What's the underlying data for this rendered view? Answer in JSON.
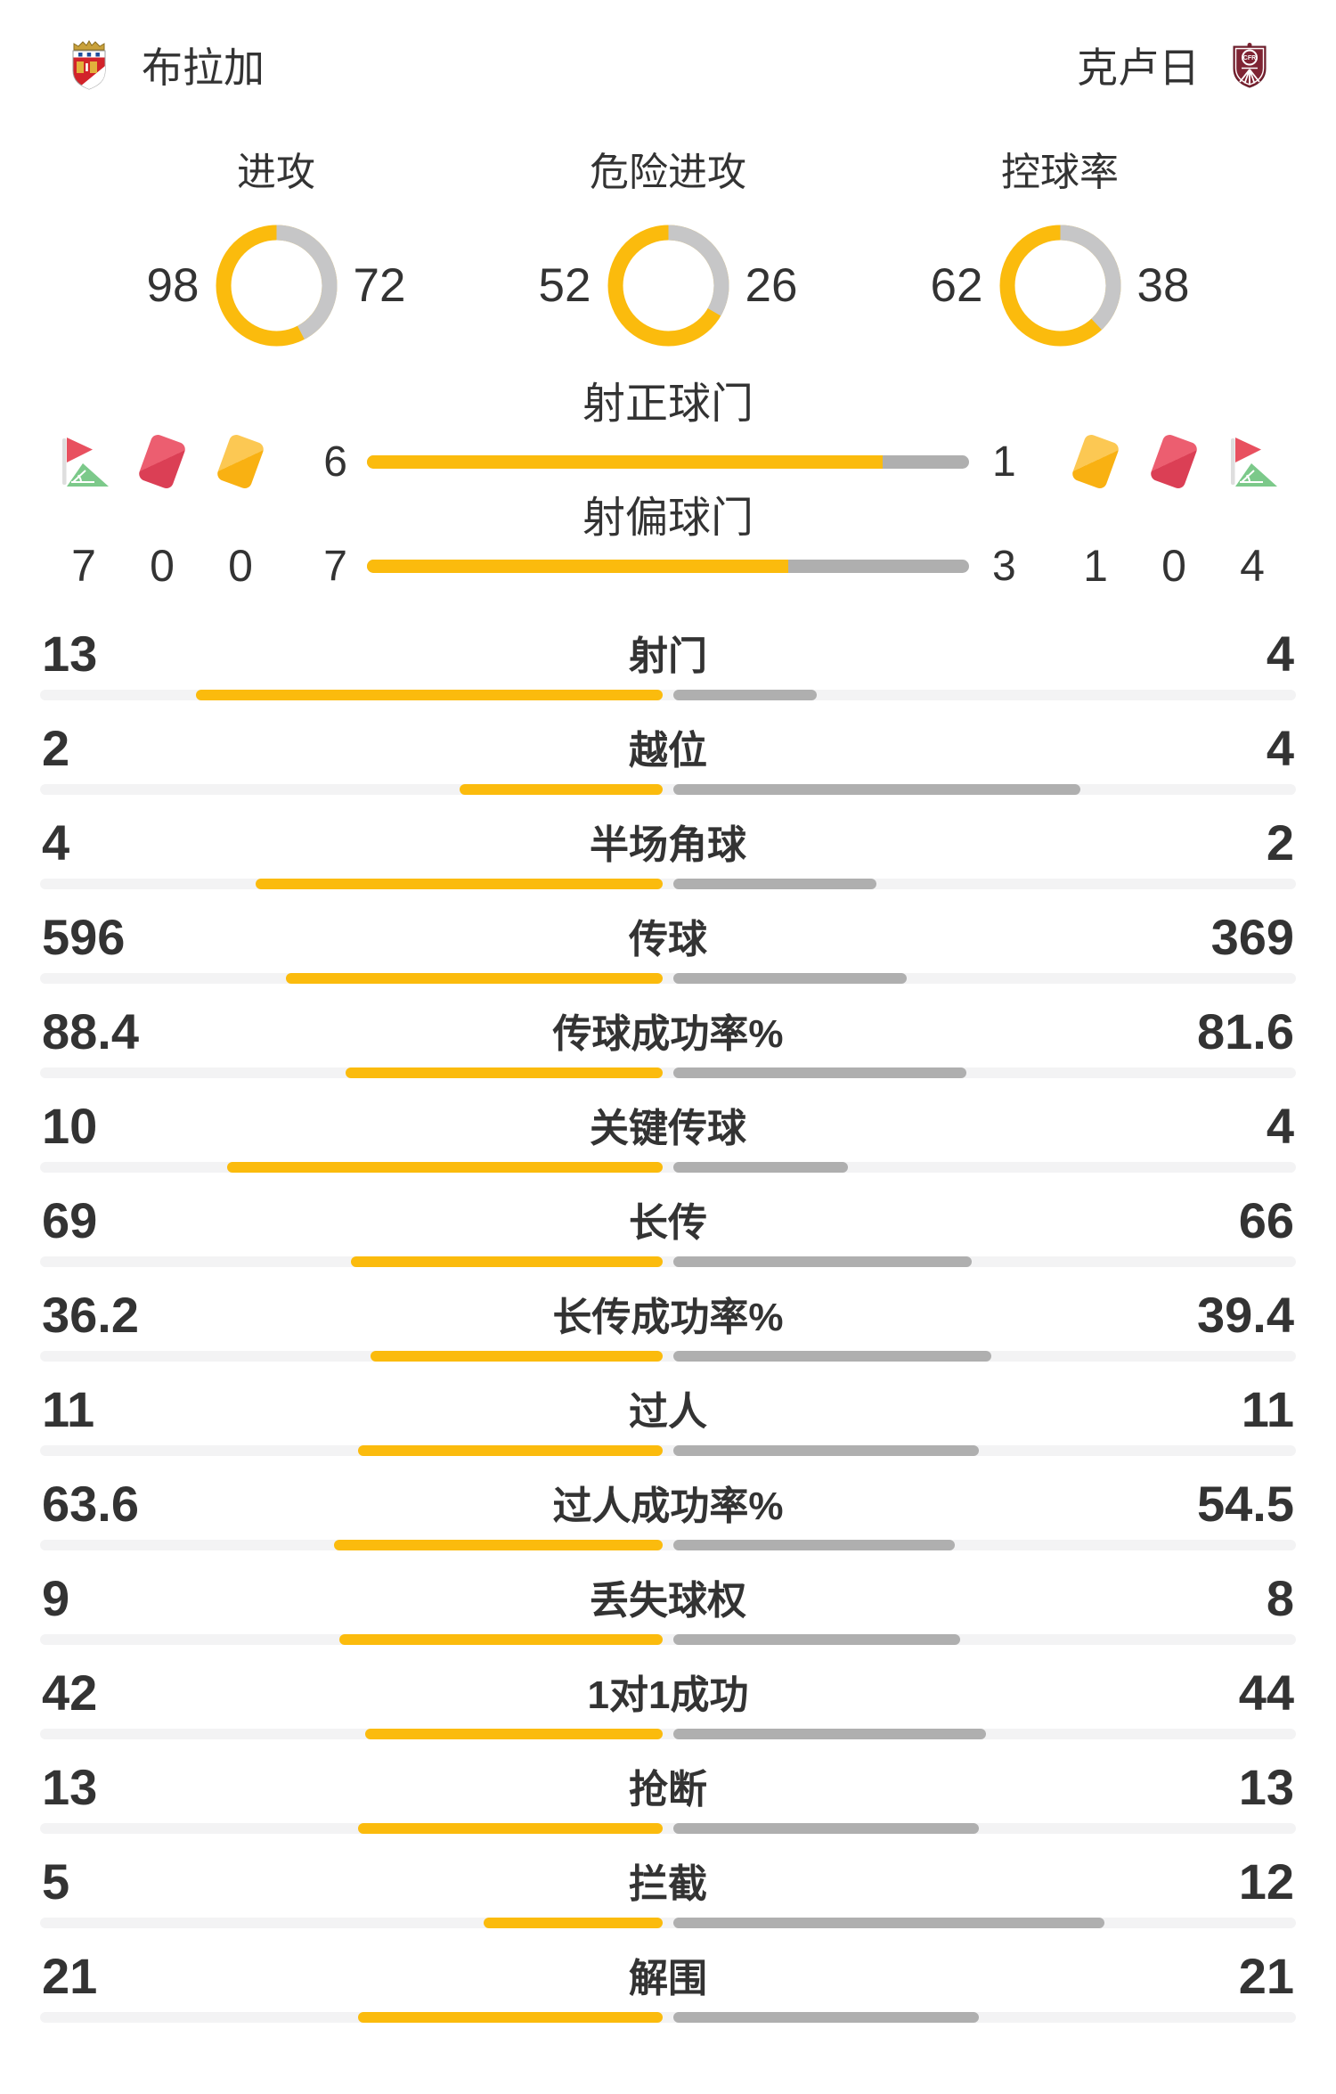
{
  "header": {
    "home_team": "布拉加",
    "away_team": "克卢日"
  },
  "chart_data": {
    "type": "bar",
    "layout": "head-to-head match statistics, home team yellow (left), away team gray (right)",
    "donuts": [
      {
        "label": "进攻",
        "home": 98,
        "away": 72
      },
      {
        "label": "危险进攻",
        "home": 52,
        "away": 26
      },
      {
        "label": "控球率",
        "home": 62,
        "away": 38
      }
    ],
    "shot_bars": [
      {
        "label": "射正球门",
        "home": 6,
        "away": 1
      },
      {
        "label": "射偏球门",
        "home": 7,
        "away": 3
      }
    ],
    "cards_corners": {
      "home": {
        "corners": 7,
        "red_cards": 0,
        "yellow_cards": 0
      },
      "away": {
        "yellow_cards": 1,
        "red_cards": 0,
        "corners": 4
      }
    },
    "stat_rows": [
      {
        "label": "射门",
        "home": 13,
        "away": 4
      },
      {
        "label": "越位",
        "home": 2,
        "away": 4
      },
      {
        "label": "半场角球",
        "home": 4,
        "away": 2
      },
      {
        "label": "传球",
        "home": 596,
        "away": 369
      },
      {
        "label": "传球成功率%",
        "home": 88.4,
        "away": 81.6
      },
      {
        "label": "关键传球",
        "home": 10,
        "away": 4
      },
      {
        "label": "长传",
        "home": 69,
        "away": 66
      },
      {
        "label": "长传成功率%",
        "home": 36.2,
        "away": 39.4
      },
      {
        "label": "过人",
        "home": 11,
        "away": 11
      },
      {
        "label": "过人成功率%",
        "home": 63.6,
        "away": 54.5
      },
      {
        "label": "丢失球权",
        "home": 9,
        "away": 8
      },
      {
        "label": "1对1成功",
        "home": 42,
        "away": 44
      },
      {
        "label": "抢断",
        "home": 13,
        "away": 13
      },
      {
        "label": "拦截",
        "home": 5,
        "away": 12
      },
      {
        "label": "解围",
        "home": 21,
        "away": 21
      }
    ],
    "colors": {
      "home": "#FBBB0D",
      "away": "#AFAFAF",
      "donut_away": "#C6C6C7",
      "track": "#F3F3F4"
    }
  }
}
